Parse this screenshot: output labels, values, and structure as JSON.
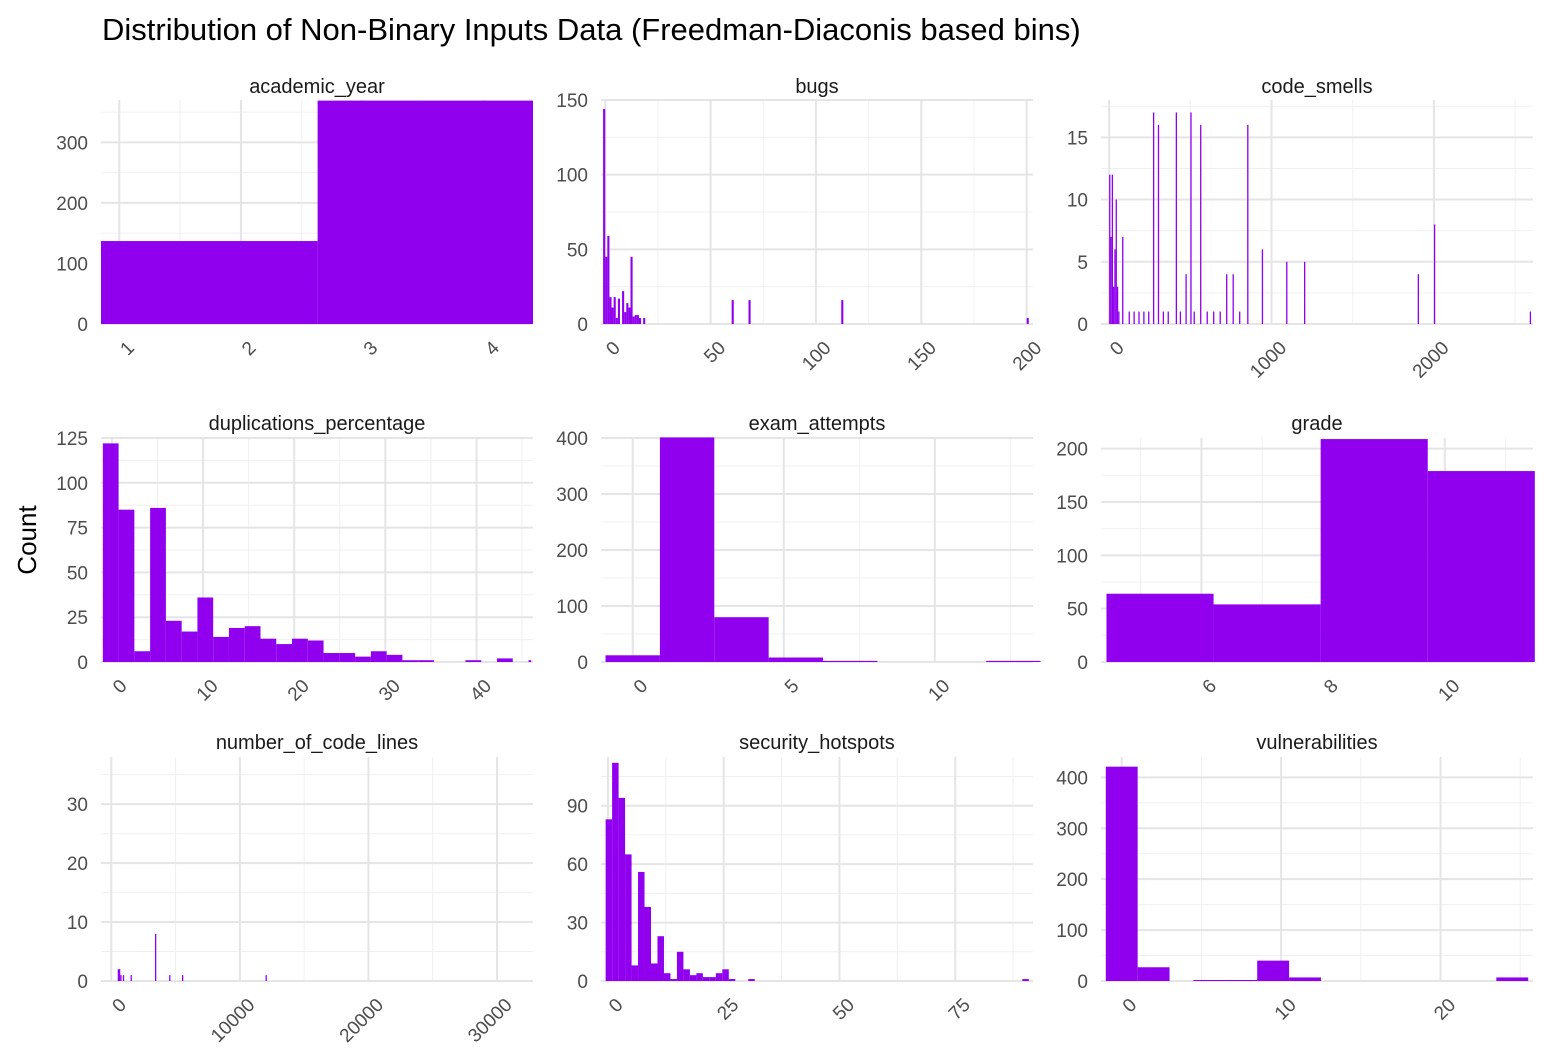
{
  "title": "Distribution of Non-Binary Inputs Data (Freedman-Diaconis based bins)",
  "ylabel": "Count",
  "colors": {
    "bar": "#9000EE",
    "grid_major": "#E5E5E5",
    "grid_minor": "#F0F0F0",
    "tick_text": "#4D4D4D"
  },
  "chart_data": [
    {
      "type": "bar",
      "title": "academic_year",
      "xlim": [
        0.85,
        4.4
      ],
      "ylim": [
        0,
        370
      ],
      "xticks": [
        1,
        2,
        3,
        4
      ],
      "yticks": [
        0,
        100,
        200,
        300
      ],
      "bins": [
        [
          0.85,
          2.63,
          137
        ],
        [
          2.63,
          4.4,
          369
        ]
      ]
    },
    {
      "type": "bar",
      "title": "bugs",
      "xlim": [
        -2,
        203
      ],
      "ylim": [
        0,
        150
      ],
      "xticks": [
        0,
        50,
        100,
        150,
        200
      ],
      "yticks": [
        0,
        50,
        100,
        150
      ],
      "bins": [
        [
          -1,
          0,
          144
        ],
        [
          0,
          1,
          45
        ],
        [
          1,
          2,
          59
        ],
        [
          2,
          3,
          18
        ],
        [
          3,
          4,
          11
        ],
        [
          4,
          5,
          18
        ],
        [
          5,
          6,
          4
        ],
        [
          6,
          7,
          17
        ],
        [
          8,
          9,
          22
        ],
        [
          9,
          10,
          8
        ],
        [
          10,
          11,
          14
        ],
        [
          11,
          12,
          11
        ],
        [
          12,
          13,
          45
        ],
        [
          13,
          14,
          5
        ],
        [
          14,
          15,
          6
        ],
        [
          15,
          16,
          6
        ],
        [
          16,
          17,
          4
        ],
        [
          18,
          19,
          4
        ],
        [
          60,
          61,
          16
        ],
        [
          68,
          69,
          16
        ],
        [
          112,
          113,
          16
        ],
        [
          200,
          201,
          4
        ]
      ]
    },
    {
      "type": "bar",
      "title": "code_smells",
      "xlim": [
        -50,
        2610
      ],
      "ylim": [
        0,
        18
      ],
      "xticks": [
        0,
        1000,
        2000
      ],
      "yticks": [
        0,
        5,
        10,
        15
      ],
      "bins": [
        [
          0,
          8,
          12
        ],
        [
          8,
          16,
          7
        ],
        [
          16,
          24,
          12
        ],
        [
          24,
          32,
          3
        ],
        [
          32,
          40,
          6
        ],
        [
          40,
          48,
          10
        ],
        [
          48,
          56,
          3
        ],
        [
          56,
          64,
          1
        ],
        [
          80,
          88,
          7
        ],
        [
          120,
          128,
          1
        ],
        [
          150,
          158,
          1
        ],
        [
          180,
          188,
          1
        ],
        [
          210,
          218,
          1
        ],
        [
          240,
          248,
          1
        ],
        [
          270,
          278,
          17
        ],
        [
          300,
          308,
          16
        ],
        [
          330,
          338,
          1
        ],
        [
          360,
          368,
          1
        ],
        [
          410,
          418,
          17
        ],
        [
          435,
          443,
          1
        ],
        [
          470,
          478,
          4
        ],
        [
          500,
          508,
          17
        ],
        [
          520,
          528,
          1
        ],
        [
          560,
          568,
          16
        ],
        [
          600,
          608,
          1
        ],
        [
          640,
          648,
          1
        ],
        [
          680,
          688,
          1
        ],
        [
          720,
          728,
          4
        ],
        [
          760,
          768,
          4
        ],
        [
          800,
          808,
          1
        ],
        [
          850,
          858,
          16
        ],
        [
          940,
          948,
          6
        ],
        [
          1090,
          1098,
          5
        ],
        [
          1200,
          1208,
          5
        ],
        [
          1900,
          1908,
          4
        ],
        [
          2000,
          2008,
          8
        ],
        [
          2590,
          2598,
          1
        ]
      ]
    },
    {
      "type": "bar",
      "title": "duplications_percentage",
      "xlim": [
        -1.2,
        46.2
      ],
      "ylim": [
        0,
        125
      ],
      "xticks": [
        0,
        10,
        20,
        30,
        40
      ],
      "yticks": [
        0,
        25,
        50,
        75,
        100,
        125
      ],
      "bins": [
        [
          -1,
          0.73,
          122
        ],
        [
          0.73,
          2.46,
          85
        ],
        [
          2.46,
          4.19,
          6
        ],
        [
          4.19,
          5.92,
          86
        ],
        [
          5.92,
          7.65,
          23
        ],
        [
          7.65,
          9.38,
          17
        ],
        [
          9.38,
          11.11,
          36
        ],
        [
          11.11,
          12.84,
          14
        ],
        [
          12.84,
          14.57,
          19
        ],
        [
          14.57,
          16.3,
          20
        ],
        [
          16.3,
          18.03,
          13
        ],
        [
          18.03,
          19.76,
          10
        ],
        [
          19.76,
          21.49,
          13
        ],
        [
          21.49,
          23.22,
          12
        ],
        [
          23.22,
          24.95,
          5
        ],
        [
          24.95,
          26.68,
          5
        ],
        [
          26.68,
          28.41,
          3
        ],
        [
          28.41,
          30.14,
          6
        ],
        [
          30.14,
          31.87,
          4
        ],
        [
          31.87,
          33.6,
          1
        ],
        [
          33.6,
          35.33,
          1
        ],
        [
          38.79,
          40.52,
          1
        ],
        [
          42.25,
          43.98,
          2
        ],
        [
          45.71,
          46,
          1
        ]
      ]
    },
    {
      "type": "bar",
      "title": "exam_attempts",
      "xlim": [
        -1.05,
        13.25
      ],
      "ylim": [
        0,
        400
      ],
      "xticks": [
        0,
        5,
        10
      ],
      "yticks": [
        0,
        100,
        200,
        300,
        400
      ],
      "bins": [
        [
          -0.9,
          0.9,
          12
        ],
        [
          0.9,
          2.7,
          401
        ],
        [
          2.7,
          4.5,
          80
        ],
        [
          4.5,
          6.3,
          8
        ],
        [
          6.3,
          8.1,
          2
        ],
        [
          11.7,
          13.5,
          2
        ]
      ]
    },
    {
      "type": "bar",
      "title": "grade",
      "xlim": [
        4.35,
        11.45
      ],
      "ylim": [
        0,
        210
      ],
      "xticks": [
        6,
        8,
        10
      ],
      "yticks": [
        0,
        50,
        100,
        150,
        200
      ],
      "bins": [
        [
          4.44,
          6.2,
          64
        ],
        [
          6.2,
          7.96,
          54
        ],
        [
          7.96,
          9.72,
          209
        ],
        [
          9.72,
          11.48,
          179
        ]
      ]
    },
    {
      "type": "bar",
      "title": "number_of_code_lines",
      "xlim": [
        -800,
        32800
      ],
      "ylim": [
        0,
        38
      ],
      "xticks": [
        0,
        10000,
        20000,
        30000
      ],
      "yticks": [
        0,
        10,
        20,
        30
      ],
      "bins": [
        [
          500,
          600,
          2
        ],
        [
          600,
          700,
          2
        ],
        [
          700,
          800,
          1
        ],
        [
          900,
          1000,
          1
        ],
        [
          1500,
          1600,
          1
        ],
        [
          3400,
          3500,
          8
        ],
        [
          4500,
          4600,
          1
        ],
        [
          5500,
          5600,
          1
        ],
        [
          12000,
          12100,
          1
        ]
      ]
    },
    {
      "type": "bar",
      "title": "security_hotspots",
      "xlim": [
        -1.5,
        91.8
      ],
      "ylim": [
        0,
        115
      ],
      "xticks": [
        0,
        25,
        50,
        75
      ],
      "yticks": [
        0,
        30,
        60,
        90
      ],
      "bins": [
        [
          -0.5,
          0.9,
          83
        ],
        [
          0.9,
          2.3,
          112
        ],
        [
          2.3,
          3.7,
          94
        ],
        [
          3.7,
          5.1,
          65
        ],
        [
          5.1,
          6.5,
          8
        ],
        [
          6.5,
          7.9,
          56
        ],
        [
          7.9,
          9.3,
          38
        ],
        [
          9.3,
          10.7,
          9
        ],
        [
          10.7,
          12.1,
          23
        ],
        [
          12.1,
          13.5,
          4
        ],
        [
          13.5,
          14.9,
          1
        ],
        [
          14.9,
          16.3,
          15
        ],
        [
          16.3,
          17.7,
          6
        ],
        [
          17.7,
          19.1,
          3
        ],
        [
          19.1,
          20.5,
          4
        ],
        [
          20.5,
          21.9,
          2
        ],
        [
          21.9,
          23.3,
          2
        ],
        [
          23.3,
          24.7,
          4
        ],
        [
          24.7,
          26.1,
          6
        ],
        [
          26.1,
          27.5,
          1
        ],
        [
          30.3,
          31.7,
          1
        ],
        [
          89.5,
          90.9,
          1
        ]
      ]
    },
    {
      "type": "bar",
      "title": "vulnerabilities",
      "xlim": [
        -1.3,
        25.8
      ],
      "ylim": [
        0,
        440
      ],
      "xticks": [
        0,
        10,
        20
      ],
      "yticks": [
        0,
        100,
        200,
        300,
        400
      ],
      "bins": [
        [
          -1,
          1,
          421
        ],
        [
          1,
          3,
          27
        ],
        [
          4.5,
          6.5,
          2
        ],
        [
          6.5,
          8.5,
          2
        ],
        [
          8.5,
          10.5,
          40
        ],
        [
          10.5,
          12.5,
          7
        ],
        [
          23.5,
          25.5,
          7
        ]
      ]
    }
  ]
}
